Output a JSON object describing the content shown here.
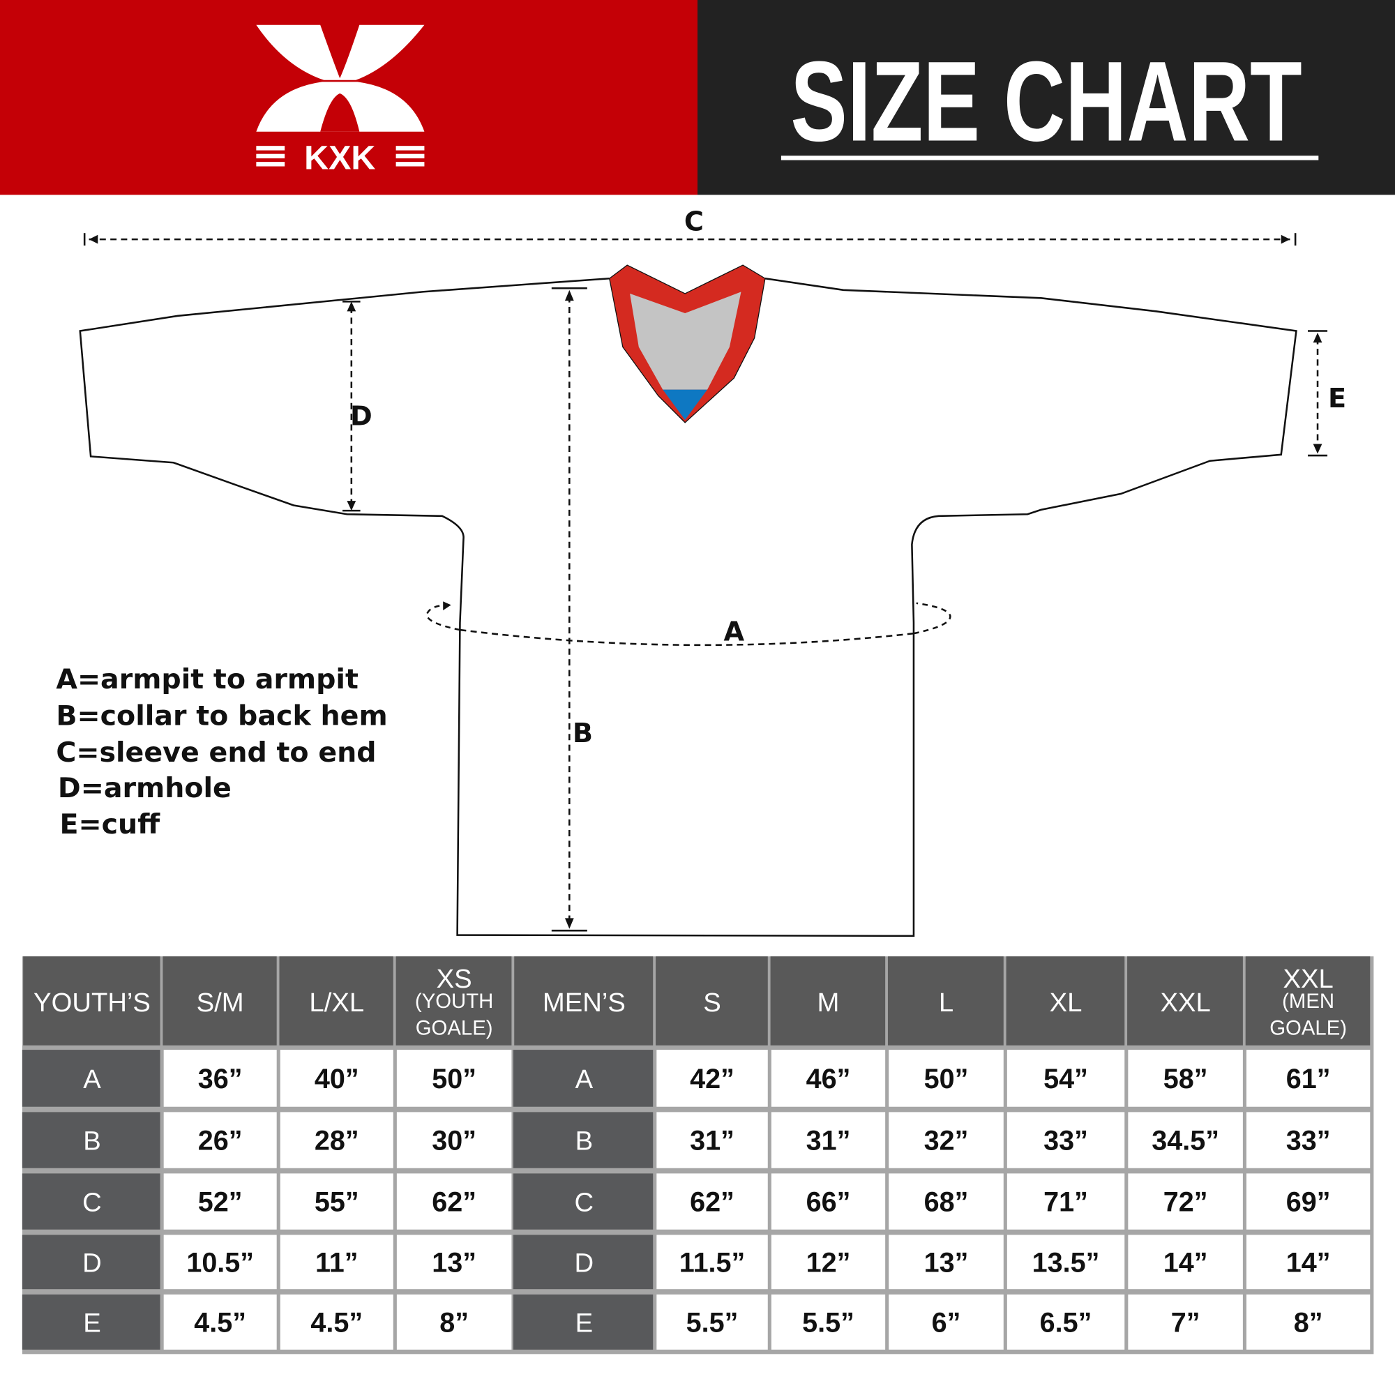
{
  "header": {
    "brand": "KXK",
    "title": "SIZE CHART",
    "colors": {
      "brand_red": "#c40006",
      "dark": "#222222"
    }
  },
  "diagram": {
    "labels": {
      "a": "A",
      "b": "B",
      "c": "C",
      "d": "D",
      "e": "E"
    },
    "colors": {
      "trim_red": "#d42a20",
      "collar_grey": "#c4c4c4",
      "collar_blue": "#0e78c2"
    }
  },
  "legend": [
    "A=armpit to armpit",
    "B=collar to back hem",
    "C=sleeve end to end",
    "D=armhole",
    "E=cuff"
  ],
  "table": {
    "youth_header": "YOUTH’S",
    "men_header": "MEN’S",
    "youth_sizes": [
      {
        "label": "S/M"
      },
      {
        "label": "L/XL"
      },
      {
        "label": "XS",
        "sub1": "(YOUTH",
        "sub2": "GOALE)"
      }
    ],
    "men_sizes": [
      {
        "label": "S"
      },
      {
        "label": "M"
      },
      {
        "label": "L"
      },
      {
        "label": "XL"
      },
      {
        "label": "XXL"
      },
      {
        "label": "XXL",
        "sub1": "(MEN",
        "sub2": "GOALE)"
      }
    ],
    "rows": [
      {
        "label": "A",
        "youth": [
          "36”",
          "40”",
          "50”"
        ],
        "men": [
          "42”",
          "46”",
          "50”",
          "54”",
          "58”",
          "61”"
        ]
      },
      {
        "label": "B",
        "youth": [
          "26”",
          "28”",
          "30”"
        ],
        "men": [
          "31”",
          "31”",
          "32”",
          "33”",
          "34.5”",
          "33”"
        ]
      },
      {
        "label": "C",
        "youth": [
          "52”",
          "55”",
          "62”"
        ],
        "men": [
          "62”",
          "66”",
          "68”",
          "71”",
          "72”",
          "69”"
        ]
      },
      {
        "label": "D",
        "youth": [
          "10.5”",
          "11”",
          "13”"
        ],
        "men": [
          "11.5”",
          "12”",
          "13”",
          "13.5”",
          "14”",
          "14”"
        ]
      },
      {
        "label": "E",
        "youth": [
          "4.5”",
          "4.5”",
          "8”"
        ],
        "men": [
          "5.5”",
          "5.5”",
          "6”",
          "6.5”",
          "7”",
          "8”"
        ]
      }
    ]
  }
}
